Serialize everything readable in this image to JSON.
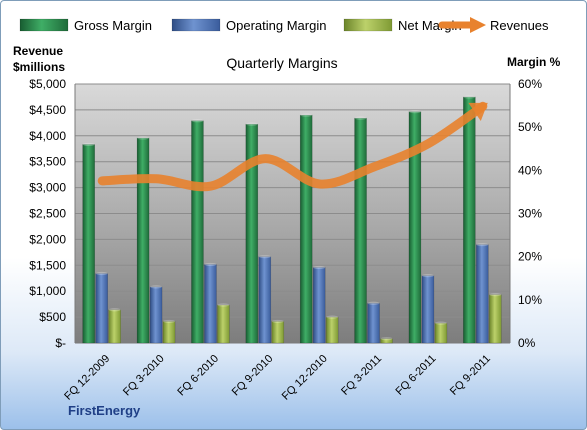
{
  "chart_data": {
    "type": "bar",
    "title": "Quarterly Margins",
    "left_axis_title": [
      "Revenue",
      "$millions"
    ],
    "right_axis_title": "Margin %",
    "footer": "FirstEnergy",
    "categories": [
      "FQ 12-2009",
      "FQ 3-2010",
      "FQ 6-2010",
      "FQ 9-2010",
      "FQ 12-2010",
      "FQ 3-2011",
      "FQ 6-2011",
      "FQ 9-2011"
    ],
    "left_axis": {
      "ylim": [
        0,
        5000
      ],
      "ticks": [
        "$-",
        "$500",
        "$1,000",
        "$1,500",
        "$2,000",
        "$2,500",
        "$3,000",
        "$3,500",
        "$4,000",
        "$4,500",
        "$5,000"
      ]
    },
    "right_axis": {
      "ylim": [
        0,
        60
      ],
      "ticks": [
        "0%",
        "10%",
        "20%",
        "30%",
        "40%",
        "50%",
        "60%"
      ]
    },
    "series": [
      {
        "name": "Gross Margin",
        "axis": "right",
        "type": "bar",
        "color": "#2e8b4f",
        "values": [
          46.0,
          47.5,
          51.5,
          50.7,
          52.8,
          52.1,
          53.6,
          57.0
        ]
      },
      {
        "name": "Operating Margin",
        "axis": "right",
        "type": "bar",
        "color": "#4a6fb0",
        "values": [
          16.1,
          13.0,
          18.2,
          20.0,
          17.5,
          9.2,
          15.6,
          22.8
        ]
      },
      {
        "name": "Net Margin",
        "axis": "right",
        "type": "bar",
        "color": "#9ab34a",
        "values": [
          7.7,
          5.0,
          8.8,
          5.0,
          6.0,
          1.0,
          4.6,
          11.2
        ]
      },
      {
        "name": "Revenues",
        "axis": "left",
        "type": "line",
        "color": "#e8822e",
        "values": [
          3130,
          3170,
          3030,
          3560,
          3070,
          3400,
          3850,
          4570
        ]
      }
    ],
    "legend": "top",
    "grid": true
  }
}
